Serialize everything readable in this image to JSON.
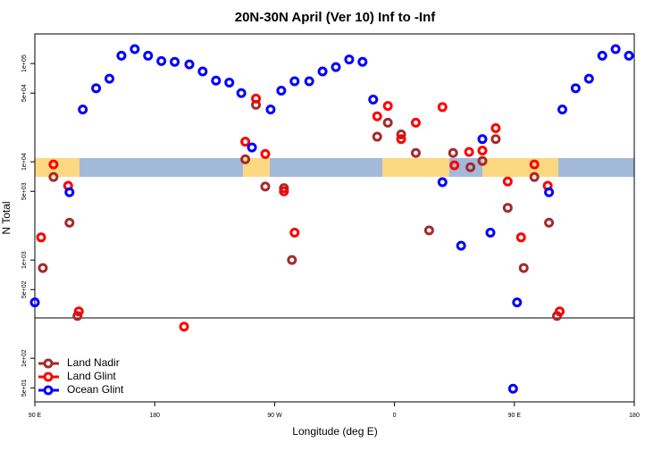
{
  "chart_data": {
    "type": "scatter",
    "title": "20N-30N April (Ver 10)   Inf to -Inf",
    "x_label": "Longitude (deg E)",
    "y_label": "N Total",
    "log_y": true,
    "legend": "bottom-left",
    "xlim": [
      90,
      540
    ],
    "ylim": [
      36,
      200000
    ],
    "xticks": [
      {
        "value": 90,
        "label": "90 E"
      },
      {
        "value": 180,
        "label": "180"
      },
      {
        "value": 270,
        "label": "90 W"
      },
      {
        "value": 360,
        "label": "0"
      },
      {
        "value": 450,
        "label": "90 E"
      },
      {
        "value": 540,
        "label": "180"
      }
    ],
    "yticks": [
      {
        "value": 50,
        "label": "5e+01"
      },
      {
        "value": 100,
        "label": "1e+02"
      },
      {
        "value": 500,
        "label": "5e+02"
      },
      {
        "value": 1000,
        "label": "1e+03"
      },
      {
        "value": 5000,
        "label": "5e+03"
      },
      {
        "value": 10000,
        "label": "1e+04"
      },
      {
        "value": 50000,
        "label": "5e+04"
      },
      {
        "value": 100000,
        "label": "1e+05"
      }
    ],
    "series": [
      {
        "name": "Land Nadir",
        "color": "#a52a2a",
        "x": [
          96,
          104,
          116,
          122,
          256,
          248,
          263,
          277,
          283,
          347,
          355,
          365,
          376,
          386,
          404,
          417,
          426,
          436,
          445,
          457,
          465,
          476,
          482
        ],
        "values": [
          830,
          7000,
          2400,
          270,
          38000,
          10600,
          5600,
          5400,
          1000,
          18000,
          25000,
          19000,
          12300,
          2000,
          12300,
          8800,
          10200,
          17000,
          3400,
          830,
          7000,
          2400,
          270
        ]
      },
      {
        "name": "Land Glint",
        "color": "#ff0000",
        "x": [
          94.7,
          104,
          115,
          123,
          202,
          256,
          248,
          263,
          277,
          285,
          347,
          355,
          365,
          376,
          396,
          405,
          416,
          426,
          436,
          445,
          455,
          465,
          475,
          484
        ],
        "values": [
          1700,
          9400,
          5700,
          300,
          210,
          44000,
          16000,
          12000,
          5000,
          1900,
          29000,
          37000,
          17000,
          25000,
          36000,
          9200,
          12600,
          13000,
          22000,
          6300,
          1700,
          9400,
          5700,
          300
        ]
      },
      {
        "name": "Ocean Glint",
        "color": "#0000ff",
        "x": [
          90,
          116,
          126,
          136,
          146,
          155,
          165,
          175,
          185,
          195,
          206,
          216,
          226,
          236,
          245,
          253,
          267,
          275,
          285,
          296,
          306,
          316,
          326,
          336,
          344,
          396,
          410,
          426,
          432,
          452,
          449,
          476,
          486,
          496,
          506,
          516,
          526,
          536
        ],
        "values": [
          370,
          4900,
          34000,
          56000,
          70000,
          120000,
          140000,
          120000,
          106000,
          104000,
          98000,
          83000,
          67000,
          64000,
          50000,
          14000,
          34000,
          53000,
          66000,
          66000,
          83000,
          92000,
          110000,
          104000,
          43000,
          6200,
          1400,
          17000,
          1900,
          370,
          49,
          4900,
          34000,
          56000,
          70000,
          120000,
          140000,
          120000
        ]
      }
    ]
  }
}
